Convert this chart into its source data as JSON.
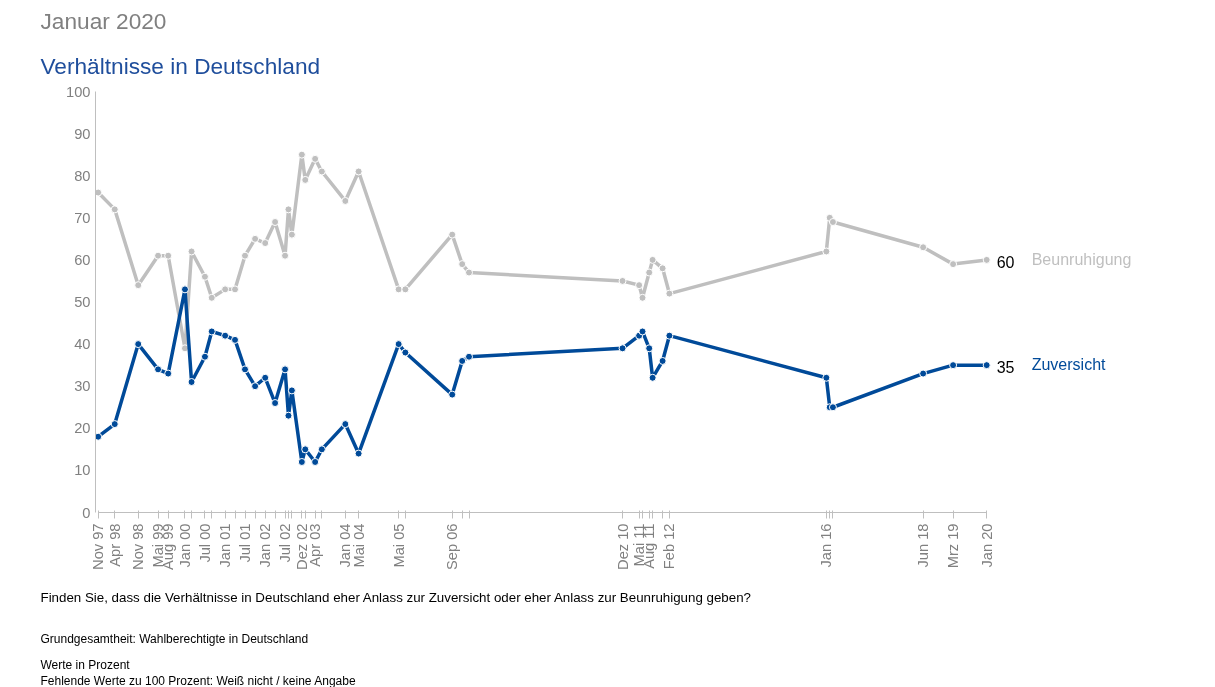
{
  "chart_data": {
    "type": "line",
    "title": "Januar 2020",
    "subtitle": "Verhältnisse in Deutschland",
    "annotations": [
      "Finden Sie, dass die Verhältnisse in Deutschland eher Anlass zur Zuversicht oder eher Anlass zur Beunruhigung geben?",
      "Grundgesamtheit: Wahlberechtigte in Deutschland",
      "Werte in Prozent",
      "Fehlende Werte zu 100 Prozent: Weiß nicht / keine Angabe"
    ],
    "x": [
      "1997-11",
      "1998-04",
      "1998-11",
      "1999-05",
      "1999-08",
      "2000-01",
      "2000-03",
      "2000-07",
      "2000-09",
      "2001-01",
      "2001-04",
      "2001-07",
      "2001-10",
      "2002-01",
      "2002-04",
      "2002-07",
      "2002-08",
      "2002-09",
      "2002-12",
      "2003-01",
      "2003-04",
      "2003-06",
      "2004-01",
      "2004-05",
      "2005-05",
      "2005-07",
      "2006-09",
      "2006-12",
      "2007-02",
      "2010-12",
      "2011-05",
      "2011-06",
      "2011-08",
      "2011-09",
      "2011-12",
      "2012-02",
      "2016-01",
      "2016-02",
      "2016-03",
      "2018-06",
      "2019-03",
      "2020-01"
    ],
    "series": [
      {
        "name": "Beunruhigung",
        "color": "#bfbfbf",
        "values": [
          76,
          72,
          54,
          61,
          61,
          39,
          62,
          56,
          51,
          53,
          53,
          61,
          65,
          64,
          69,
          61,
          72,
          66,
          85,
          79,
          84,
          81,
          74,
          81,
          53,
          53,
          66,
          59,
          57,
          55,
          54,
          51,
          57,
          60,
          58,
          52,
          62,
          70,
          69,
          63,
          59,
          60
        ],
        "value_labels": [
          null,
          null,
          null,
          null,
          null,
          null,
          null,
          null,
          null,
          null,
          null,
          null,
          null,
          null,
          null,
          null,
          null,
          null,
          null,
          null,
          null,
          null,
          null,
          null,
          null,
          null,
          null,
          null,
          null,
          null,
          null,
          null,
          null,
          null,
          null,
          null,
          null,
          null,
          null,
          null,
          null,
          "60"
        ]
      },
      {
        "name": "Zuversicht",
        "color": "#004a99",
        "values": [
          18,
          21,
          40,
          34,
          33,
          53,
          31,
          37,
          43,
          42,
          41,
          34,
          30,
          32,
          26,
          34,
          23,
          29,
          12,
          15,
          12,
          15,
          21,
          14,
          40,
          38,
          28,
          36,
          37,
          39,
          42,
          43,
          39,
          32,
          36,
          42,
          32,
          25,
          25,
          33,
          35,
          35
        ],
        "value_labels": [
          null,
          null,
          null,
          null,
          null,
          null,
          null,
          null,
          null,
          null,
          null,
          null,
          null,
          null,
          null,
          null,
          null,
          null,
          null,
          null,
          null,
          null,
          null,
          null,
          null,
          null,
          null,
          null,
          null,
          null,
          null,
          null,
          null,
          null,
          null,
          null,
          null,
          null,
          null,
          null,
          null,
          "35"
        ]
      }
    ],
    "xlim": [
      "1997-11",
      "2020-01"
    ],
    "xticks": [
      {
        "value": "1997-11",
        "label": "Nov 97"
      },
      {
        "value": "1998-04",
        "label": "Apr 98"
      },
      {
        "value": "1998-11",
        "label": "Nov 98"
      },
      {
        "value": "1999-05",
        "label": "Mai 99"
      },
      {
        "value": "1999-08",
        "label": "Aug 99"
      },
      {
        "value": "2000-01",
        "label": "Jan 00"
      },
      {
        "value": "2000-03",
        "label": null
      },
      {
        "value": "2000-07",
        "label": "Jul 00"
      },
      {
        "value": "2000-09",
        "label": null
      },
      {
        "value": "2001-01",
        "label": "Jan 01"
      },
      {
        "value": "2001-04",
        "label": null
      },
      {
        "value": "2001-07",
        "label": "Jul 01"
      },
      {
        "value": "2001-10",
        "label": null
      },
      {
        "value": "2002-01",
        "label": "Jan 02"
      },
      {
        "value": "2002-04",
        "label": null
      },
      {
        "value": "2002-07",
        "label": "Jul 02"
      },
      {
        "value": "2002-08",
        "label": null
      },
      {
        "value": "2002-09",
        "label": null
      },
      {
        "value": "2002-12",
        "label": "Dez 02"
      },
      {
        "value": "2003-01",
        "label": null
      },
      {
        "value": "2003-04",
        "label": "Apr 03"
      },
      {
        "value": "2003-06",
        "label": null
      },
      {
        "value": "2004-01",
        "label": "Jan 04"
      },
      {
        "value": "2004-05",
        "label": "Mai 04"
      },
      {
        "value": "2005-05",
        "label": "Mai 05"
      },
      {
        "value": "2005-07",
        "label": null
      },
      {
        "value": "2006-09",
        "label": "Sep 06"
      },
      {
        "value": "2006-12",
        "label": null
      },
      {
        "value": "2007-02",
        "label": null
      },
      {
        "value": "2010-12",
        "label": "Dez 10"
      },
      {
        "value": "2011-05",
        "label": "Mai 11"
      },
      {
        "value": "2011-06",
        "label": null
      },
      {
        "value": "2011-08",
        "label": "Aug 11"
      },
      {
        "value": "2011-09",
        "label": null
      },
      {
        "value": "2011-12",
        "label": null
      },
      {
        "value": "2012-02",
        "label": "Feb 12"
      },
      {
        "value": "2016-01",
        "label": "Jan 16"
      },
      {
        "value": "2016-02",
        "label": null
      },
      {
        "value": "2016-03",
        "label": null
      },
      {
        "value": "2018-06",
        "label": "Jun 18"
      },
      {
        "value": "2019-03",
        "label": "Mrz 19"
      },
      {
        "value": "2020-01",
        "label": "Jan 20"
      }
    ],
    "ylim": [
      0,
      100
    ],
    "yticks": [
      0,
      10,
      20,
      30,
      40,
      50,
      60,
      70,
      80,
      90,
      100
    ],
    "grid": false,
    "marker": "circle",
    "line_style": "solid"
  }
}
